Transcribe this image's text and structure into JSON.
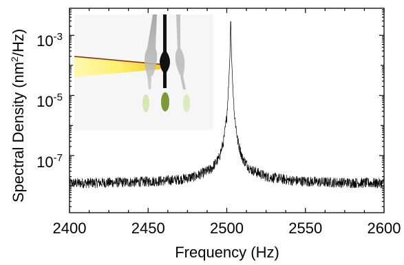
{
  "chart_data": {
    "type": "line",
    "xlabel": "Frequency (Hz)",
    "ylabel": "Spectral Density  (nm²/Hz)",
    "ylabel_parts": {
      "main": "Spectral Density  (nm",
      "sup": "2",
      "tail": "/Hz)"
    },
    "xlim": [
      2400,
      2600
    ],
    "ylim_log10": [
      -8.9,
      -2.1
    ],
    "yscale": "log",
    "grid": false,
    "x_ticks": [
      2400,
      2450,
      2500,
      2550,
      2600
    ],
    "x_tick_labels": [
      "2400",
      "2450",
      "2500",
      "2550",
      "2600"
    ],
    "y_ticks": [
      {
        "base": "10",
        "exp": "-3",
        "log10": -3
      },
      {
        "base": "10",
        "exp": "-5",
        "log10": -5
      },
      {
        "base": "10",
        "exp": "-7",
        "log10": -7
      }
    ],
    "series": [
      {
        "resonance_hz": 2502.5,
        "peak": 0.0045,
        "noise_floor": 1.2e-08,
        "points": [
          [
            2400,
            1.2e-08
          ],
          [
            2420,
            1.25e-08
          ],
          [
            2440,
            1.3e-08
          ],
          [
            2460,
            1.45e-08
          ],
          [
            2470,
            1.6e-08
          ],
          [
            2480,
            2e-08
          ],
          [
            2490,
            3.5e-08
          ],
          [
            2495,
            8e-08
          ],
          [
            2498,
            3e-07
          ],
          [
            2500,
            2e-06
          ],
          [
            2501,
            1.5e-05
          ],
          [
            2502,
            0.0002
          ],
          [
            2502.5,
            0.0045
          ],
          [
            2503,
            0.0002
          ],
          [
            2504,
            1.5e-05
          ],
          [
            2505,
            2e-06
          ],
          [
            2507,
            3e-07
          ],
          [
            2510,
            8e-08
          ],
          [
            2515,
            3.5e-08
          ],
          [
            2525,
            2e-08
          ],
          [
            2540,
            1.5e-08
          ],
          [
            2560,
            1.3e-08
          ],
          [
            2580,
            1.25e-08
          ],
          [
            2600,
            1.2e-08
          ]
        ]
      }
    ]
  }
}
